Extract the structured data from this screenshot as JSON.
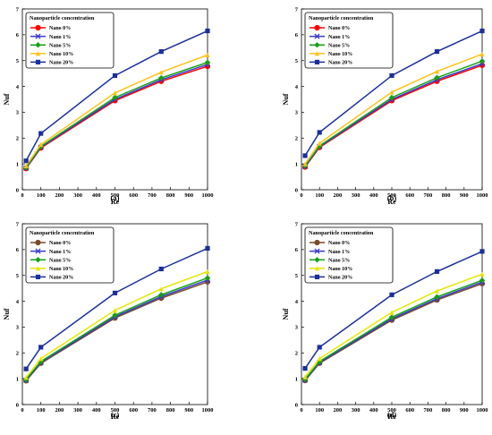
{
  "chart_data": [
    {
      "type": "line",
      "panel_label": "(a)",
      "xlabel": "Re",
      "ylabel": "Nuf",
      "xlim": [
        0,
        1000
      ],
      "ylim": [
        0,
        7
      ],
      "xticks": [
        "0",
        "100",
        "200",
        "300",
        "400",
        "500",
        "600",
        "700",
        "800",
        "900",
        "1000"
      ],
      "yticks": [
        "0",
        "1",
        "2",
        "3",
        "4",
        "5",
        "6",
        "7"
      ],
      "legend_title": "Nanoparticle concentration",
      "legend_position": "top-left",
      "x": [
        20,
        100,
        500,
        750,
        1000
      ],
      "series": [
        {
          "name": "Nano 0%",
          "color": "#ff0000",
          "marker": "circle",
          "values": [
            0.82,
            1.62,
            3.45,
            4.2,
            4.78
          ]
        },
        {
          "name": "Nano 1%",
          "color": "#3a3acc",
          "marker": "x",
          "values": [
            0.84,
            1.65,
            3.5,
            4.26,
            4.85
          ]
        },
        {
          "name": "Nano 5%",
          "color": "#16a016",
          "marker": "diamond",
          "values": [
            0.86,
            1.68,
            3.57,
            4.33,
            4.93
          ]
        },
        {
          "name": "Nano 10%",
          "color": "#ffc21a",
          "marker": "triangle",
          "values": [
            0.92,
            1.75,
            3.75,
            4.55,
            5.22
          ]
        },
        {
          "name": "Nano 20%",
          "color": "#1a2f9c",
          "marker": "square",
          "values": [
            1.12,
            2.18,
            4.42,
            5.35,
            6.15
          ]
        }
      ]
    },
    {
      "type": "line",
      "panel_label": "(b)",
      "xlabel": "Re",
      "ylabel": "Nuf",
      "xlim": [
        0,
        1000
      ],
      "ylim": [
        0,
        7
      ],
      "xticks": [
        "0",
        "100",
        "200",
        "300",
        "400",
        "500",
        "600",
        "700",
        "800",
        "900",
        "1000"
      ],
      "yticks": [
        "0",
        "1",
        "2",
        "3",
        "4",
        "5",
        "6",
        "7"
      ],
      "legend_title": "Nanoparticle concentration",
      "legend_position": "top-left",
      "x": [
        20,
        100,
        500,
        750,
        1000
      ],
      "series": [
        {
          "name": "Nano 0%",
          "color": "#ff0000",
          "marker": "circle",
          "values": [
            0.88,
            1.64,
            3.45,
            4.2,
            4.82
          ]
        },
        {
          "name": "Nano 1%",
          "color": "#3a3acc",
          "marker": "x",
          "values": [
            0.9,
            1.67,
            3.5,
            4.26,
            4.88
          ]
        },
        {
          "name": "Nano 5%",
          "color": "#16a016",
          "marker": "diamond",
          "values": [
            0.93,
            1.7,
            3.57,
            4.34,
            4.98
          ]
        },
        {
          "name": "Nano 10%",
          "color": "#ffc21a",
          "marker": "triangle",
          "values": [
            1.0,
            1.8,
            3.78,
            4.58,
            5.25
          ]
        },
        {
          "name": "Nano 20%",
          "color": "#1a2f9c",
          "marker": "square",
          "values": [
            1.32,
            2.22,
            4.42,
            5.35,
            6.15
          ]
        }
      ]
    },
    {
      "type": "line",
      "panel_label": "(c)",
      "xlabel": "Re",
      "ylabel": "Nuf",
      "xlim": [
        0,
        1000
      ],
      "ylim": [
        0,
        7
      ],
      "xticks": [
        "0",
        "100",
        "200",
        "300",
        "400",
        "500",
        "600",
        "700",
        "800",
        "900",
        "1000"
      ],
      "yticks": [
        "0",
        "1",
        "2",
        "3",
        "4",
        "5",
        "6",
        "7"
      ],
      "legend_title": "Nanoparticle concentration",
      "legend_position": "top-left",
      "x": [
        20,
        100,
        500,
        750,
        1000
      ],
      "series": [
        {
          "name": "Nano 0%",
          "color": "#7a4a2a",
          "marker": "circle",
          "values": [
            0.92,
            1.6,
            3.35,
            4.12,
            4.75
          ]
        },
        {
          "name": "Nano 1%",
          "color": "#3a3acc",
          "marker": "x",
          "values": [
            0.94,
            1.63,
            3.4,
            4.18,
            4.82
          ]
        },
        {
          "name": "Nano 5%",
          "color": "#16a016",
          "marker": "diamond",
          "values": [
            0.97,
            1.67,
            3.46,
            4.25,
            4.9
          ]
        },
        {
          "name": "Nano 10%",
          "color": "#e6e600",
          "marker": "triangle",
          "values": [
            1.05,
            1.78,
            3.65,
            4.48,
            5.15
          ]
        },
        {
          "name": "Nano 20%",
          "color": "#1a2f9c",
          "marker": "square",
          "values": [
            1.38,
            2.22,
            4.32,
            5.25,
            6.05
          ]
        }
      ]
    },
    {
      "type": "line",
      "panel_label": "(d)",
      "xlabel": "Re",
      "ylabel": "Nuf",
      "xlim": [
        0,
        1000
      ],
      "ylim": [
        0,
        7
      ],
      "xticks": [
        "0",
        "100",
        "200",
        "300",
        "400",
        "500",
        "600",
        "700",
        "800",
        "900",
        "1000"
      ],
      "yticks": [
        "0",
        "1",
        "2",
        "3",
        "4",
        "5",
        "6",
        "7"
      ],
      "legend_title": "Nanoparticle concentration",
      "legend_position": "top-left",
      "x": [
        20,
        100,
        500,
        750,
        1000
      ],
      "series": [
        {
          "name": "Nano 0%",
          "color": "#7a4a2a",
          "marker": "circle",
          "values": [
            0.93,
            1.6,
            3.27,
            4.05,
            4.68
          ]
        },
        {
          "name": "Nano 1%",
          "color": "#3a3acc",
          "marker": "x",
          "values": [
            0.95,
            1.63,
            3.32,
            4.1,
            4.74
          ]
        },
        {
          "name": "Nano 5%",
          "color": "#16a016",
          "marker": "diamond",
          "values": [
            0.98,
            1.67,
            3.38,
            4.17,
            4.81
          ]
        },
        {
          "name": "Nano 10%",
          "color": "#e6e600",
          "marker": "triangle",
          "values": [
            1.07,
            1.78,
            3.57,
            4.4,
            5.05
          ]
        },
        {
          "name": "Nano 20%",
          "color": "#1a2f9c",
          "marker": "square",
          "values": [
            1.4,
            2.22,
            4.25,
            5.15,
            5.93
          ]
        }
      ]
    }
  ]
}
